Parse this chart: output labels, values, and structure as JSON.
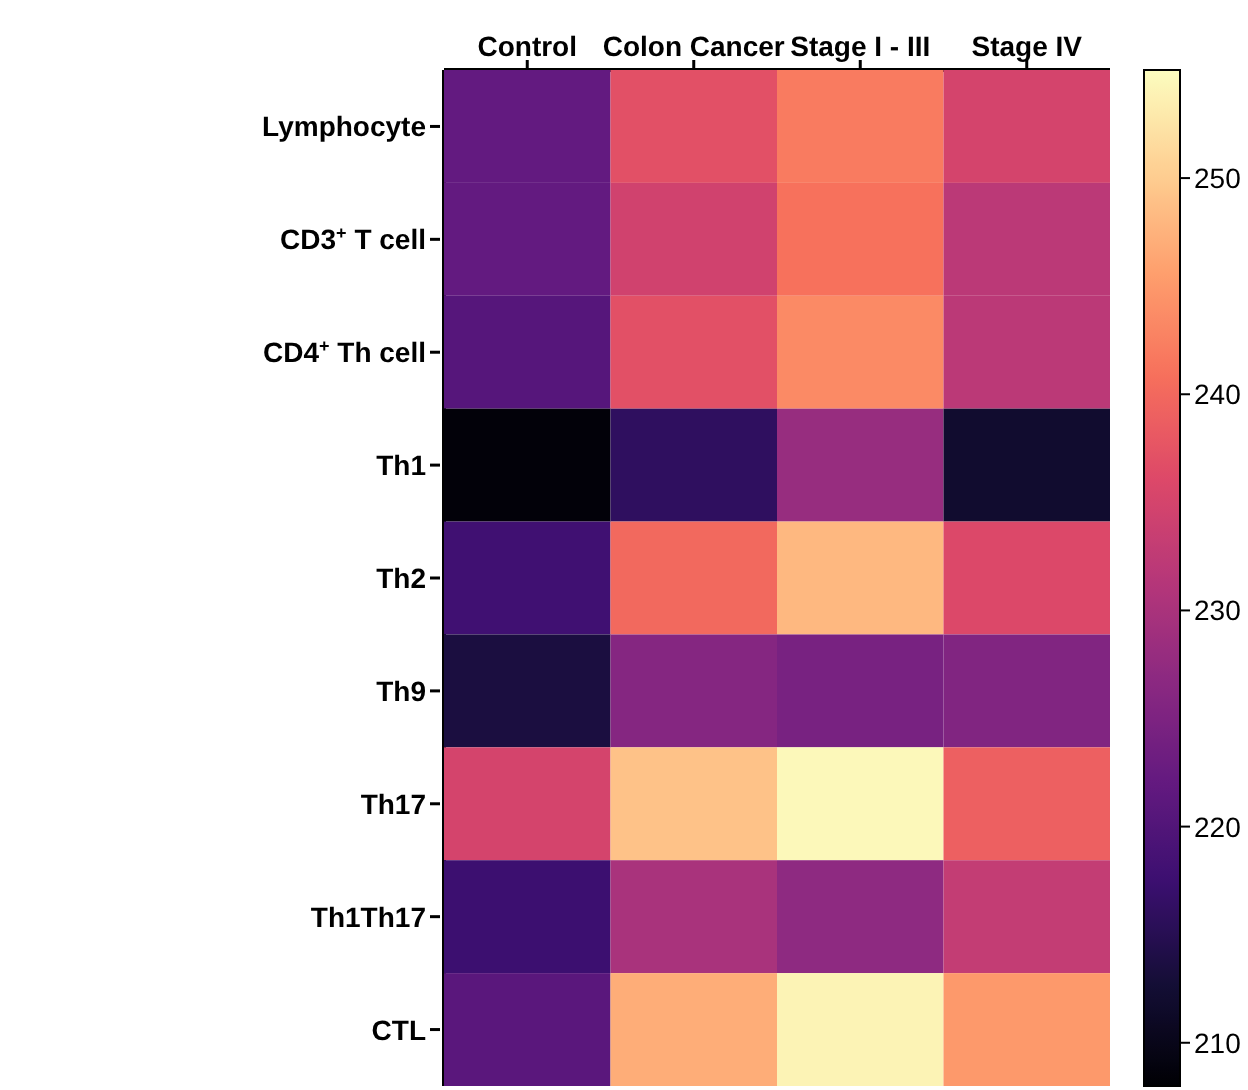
{
  "chart_data": {
    "type": "heatmap",
    "categories": [
      "Control",
      "Colon Cancer",
      "Stage I - III",
      "Stage IV"
    ],
    "y_categories": [
      "Lymphocyte",
      "CD3$^{+}$ T cell",
      "CD4$^{+}$ Th cell",
      "Th1",
      "Th2",
      "Th9",
      "Th17",
      "Th1Th17",
      "CTL"
    ],
    "cells": [
      [
        222,
        237,
        242,
        235
      ],
      [
        222,
        234.5,
        241,
        232
      ],
      [
        220.5,
        237,
        243.5,
        232
      ],
      [
        208.5,
        216,
        228,
        212
      ],
      [
        218,
        240,
        248,
        236
      ],
      [
        213.5,
        226,
        224.5,
        225.5
      ],
      [
        235,
        249,
        254.5,
        239
      ],
      [
        217.5,
        230,
        227,
        233
      ],
      [
        221,
        247,
        254,
        245
      ]
    ],
    "clim": [
      208,
      255
    ],
    "cticks": [
      210,
      220,
      230,
      240,
      250
    ]
  }
}
